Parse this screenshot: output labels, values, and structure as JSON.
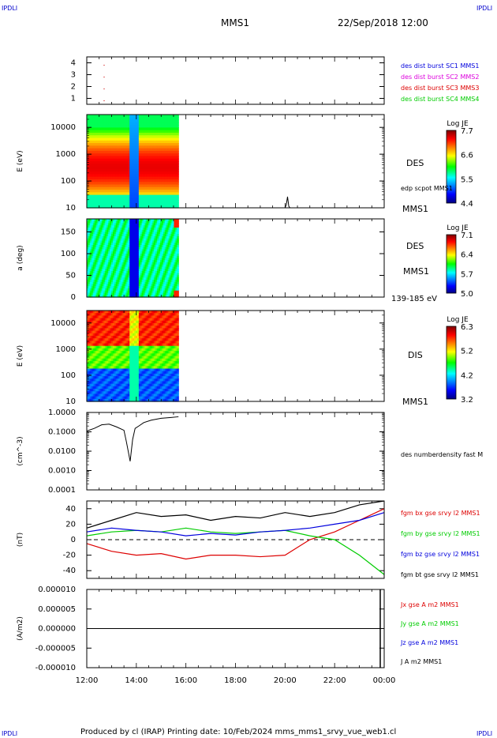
{
  "header": {
    "corner_left": "IPDLI",
    "corner_right": "IPDLI",
    "spacecraft": "MMS1",
    "datetime": "22/Sep/2018 12:00",
    "footer": "Produced by cl (IRAP)   Printing date: 10/Feb/2024   mms_mms1_srvy_vue_web1.cl",
    "footer_corner_left": "IPDLI",
    "footer_corner_right": "IPDLI"
  },
  "colors": {
    "blue": "#0000dd",
    "magenta": "#dd00dd",
    "red": "#dd0000",
    "green": "#00cc00",
    "black": "#000000"
  },
  "x_axis": {
    "range_hours": [
      12,
      24
    ],
    "ticks": [
      "12:00",
      "14:00",
      "16:00",
      "18:00",
      "20:00",
      "22:00",
      "00:00"
    ]
  },
  "chart_data": [
    {
      "type": "scatter",
      "ylim": [
        0.5,
        4.5
      ],
      "yticks": [
        "4",
        "3",
        "2",
        "1"
      ],
      "legend": [
        {
          "label": "des dist burst SC1 MMS1",
          "color": "#0000dd"
        },
        {
          "label": "des dist burst SC2 MMS2",
          "color": "#dd00dd"
        },
        {
          "label": "des dist burst SC3 MMS3",
          "color": "#dd0000"
        },
        {
          "label": "des dist burst SC4 MMS4",
          "color": "#00cc00"
        }
      ],
      "points": [
        {
          "x": 12.7,
          "y": 4
        },
        {
          "x": 12.7,
          "y": 3
        },
        {
          "x": 12.7,
          "y": 2
        },
        {
          "x": 12.7,
          "y": 1
        }
      ]
    },
    {
      "type": "heatmap",
      "ylabel": "E (eV)",
      "scale": "log",
      "ylim": [
        10,
        30000
      ],
      "yticks": [
        "10000",
        "1000",
        "100",
        "10"
      ],
      "data_range_hours": [
        12,
        15.7
      ],
      "colorbar": {
        "title": "Log JE",
        "ticks": [
          "7.7",
          "6.6",
          "5.5",
          "4.4"
        ],
        "range": [
          4.4,
          7.7
        ]
      },
      "labels": [
        "DES",
        "edp scpot MMS1",
        "MMS1"
      ]
    },
    {
      "type": "heatmap",
      "ylabel": "a (deg)",
      "ylim": [
        0,
        180
      ],
      "yticks": [
        "150",
        "100",
        "50",
        "0"
      ],
      "data_range_hours": [
        12,
        15.7
      ],
      "colorbar": {
        "title": "Log JE",
        "ticks": [
          "7.1",
          "6.4",
          "5.7",
          "5.0"
        ],
        "range": [
          5.0,
          7.1
        ]
      },
      "labels": [
        "DES",
        "MMS1",
        "139-185 eV"
      ]
    },
    {
      "type": "heatmap",
      "ylabel": "E (eV)",
      "scale": "log",
      "ylim": [
        10,
        30000
      ],
      "yticks": [
        "10000",
        "1000",
        "100",
        "10"
      ],
      "data_range_hours": [
        12,
        15.7
      ],
      "colorbar": {
        "title": "Log JE",
        "ticks": [
          "6.3",
          "5.2",
          "4.2",
          "3.2"
        ],
        "range": [
          3.2,
          6.3
        ]
      },
      "labels": [
        "DIS",
        "MMS1"
      ]
    },
    {
      "type": "line",
      "ylabel": "(cm^-3)",
      "scale": "log",
      "ylim": [
        0.0001,
        1.0
      ],
      "yticks": [
        "1.0000",
        "0.1000",
        "0.0100",
        "0.0010",
        "0.0001"
      ],
      "legend": [
        {
          "label": "des numberdensity fast M",
          "color": "#000000"
        }
      ],
      "x": [
        12.0,
        12.3,
        12.6,
        12.9,
        13.2,
        13.5,
        13.6,
        13.75,
        13.85,
        13.95,
        14.1,
        14.3,
        14.6,
        15.0,
        15.4,
        15.7
      ],
      "y": [
        0.11,
        0.15,
        0.23,
        0.25,
        0.18,
        0.12,
        0.03,
        0.003,
        0.04,
        0.15,
        0.2,
        0.3,
        0.4,
        0.5,
        0.55,
        0.6
      ]
    },
    {
      "type": "line",
      "ylabel": "(nT)",
      "ylim": [
        -50,
        50
      ],
      "yticks": [
        "40",
        "20",
        "0",
        "-20",
        "-40"
      ],
      "x": [
        12,
        13,
        14,
        15,
        16,
        17,
        18,
        19,
        20,
        21,
        22,
        23,
        24
      ],
      "series": [
        {
          "name": "fgm bx gse srvy l2 MMS1",
          "color": "#dd0000",
          "values": [
            -5,
            -15,
            -20,
            -18,
            -25,
            -20,
            -20,
            -22,
            -20,
            0,
            10,
            25,
            40
          ]
        },
        {
          "name": "fgm by gse srvy l2 MMS1",
          "color": "#00cc00",
          "values": [
            5,
            10,
            12,
            10,
            15,
            10,
            8,
            10,
            12,
            5,
            0,
            -20,
            -45
          ]
        },
        {
          "name": "fgm bz gse srvy l2 MMS1",
          "color": "#0000dd",
          "values": [
            10,
            15,
            12,
            10,
            5,
            8,
            6,
            10,
            12,
            15,
            20,
            25,
            35
          ]
        },
        {
          "name": "fgm bt gse srvy l2 MMS1",
          "color": "#000000",
          "values": [
            15,
            25,
            35,
            30,
            32,
            25,
            30,
            28,
            35,
            30,
            35,
            45,
            50
          ]
        }
      ]
    },
    {
      "type": "line",
      "ylabel": "(A/m2)",
      "ylim": [
        -1e-05,
        1e-05
      ],
      "yticks": [
        "0.000010",
        "0.000005",
        "0.000000",
        "-0.000005",
        "-0.000010"
      ],
      "series": [
        {
          "name": "Jx gse A m2 MMS1",
          "color": "#dd0000"
        },
        {
          "name": "Jy gse A m2 MMS1",
          "color": "#00cc00"
        },
        {
          "name": "Jz gse A m2 MMS1",
          "color": "#0000dd"
        },
        {
          "name": "J A m2 MMS1",
          "color": "#000000"
        }
      ]
    }
  ]
}
